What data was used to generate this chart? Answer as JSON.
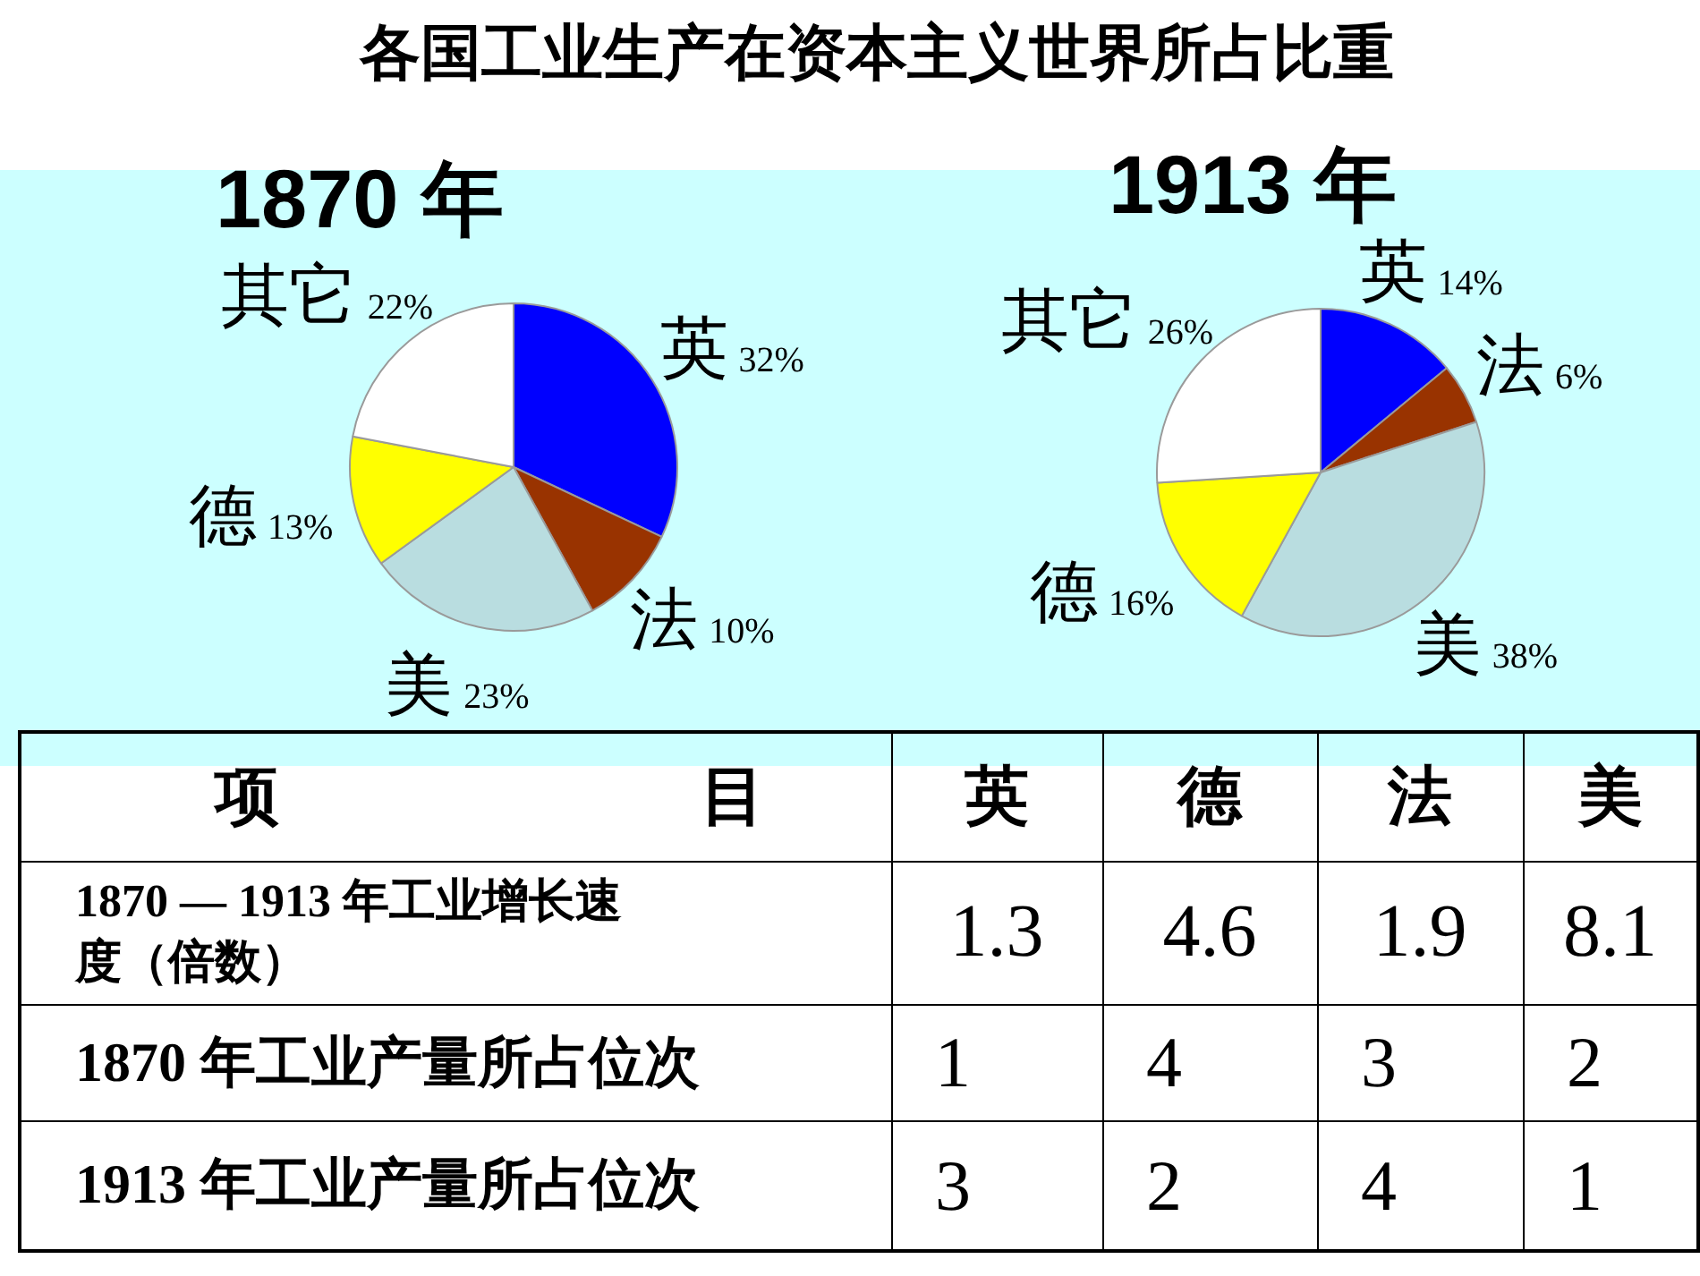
{
  "chart_data": [
    {
      "type": "pie",
      "title": "各国工业生产在资本主义世界所占比重",
      "subtitle": "1870 年",
      "categories": [
        "英",
        "法",
        "美",
        "德",
        "其它"
      ],
      "values": [
        32,
        10,
        23,
        13,
        22
      ],
      "colors": [
        "#0000ff",
        "#993300",
        "#b9dde0",
        "#ffff00",
        "#ffffff"
      ],
      "value_labels": [
        "32%",
        "10%",
        "23%",
        "13%",
        "22%"
      ]
    },
    {
      "type": "pie",
      "subtitle": "1913 年",
      "categories": [
        "英",
        "法",
        "美",
        "德",
        "其它"
      ],
      "values": [
        14,
        6,
        38,
        16,
        26
      ],
      "colors": [
        "#0000ff",
        "#993300",
        "#b9dde0",
        "#ffff00",
        "#ffffff"
      ],
      "value_labels": [
        "14%",
        "6%",
        "38%",
        "16%",
        "26%"
      ]
    },
    {
      "type": "heatmap",
      "ylabel": "项目",
      "categories": [
        "英",
        "德",
        "法",
        "美"
      ],
      "y_categories": [
        "1870 — 1913 年工业增长速度（倍数）",
        "1870 年工业产量所占位次",
        "1913 年工业产量所占位次"
      ],
      "cells": [
        [
          1.3,
          4.6,
          1.9,
          8.1
        ],
        [
          1,
          4,
          3,
          2
        ],
        [
          3,
          2,
          4,
          1
        ]
      ],
      "data_labels": true
    }
  ]
}
